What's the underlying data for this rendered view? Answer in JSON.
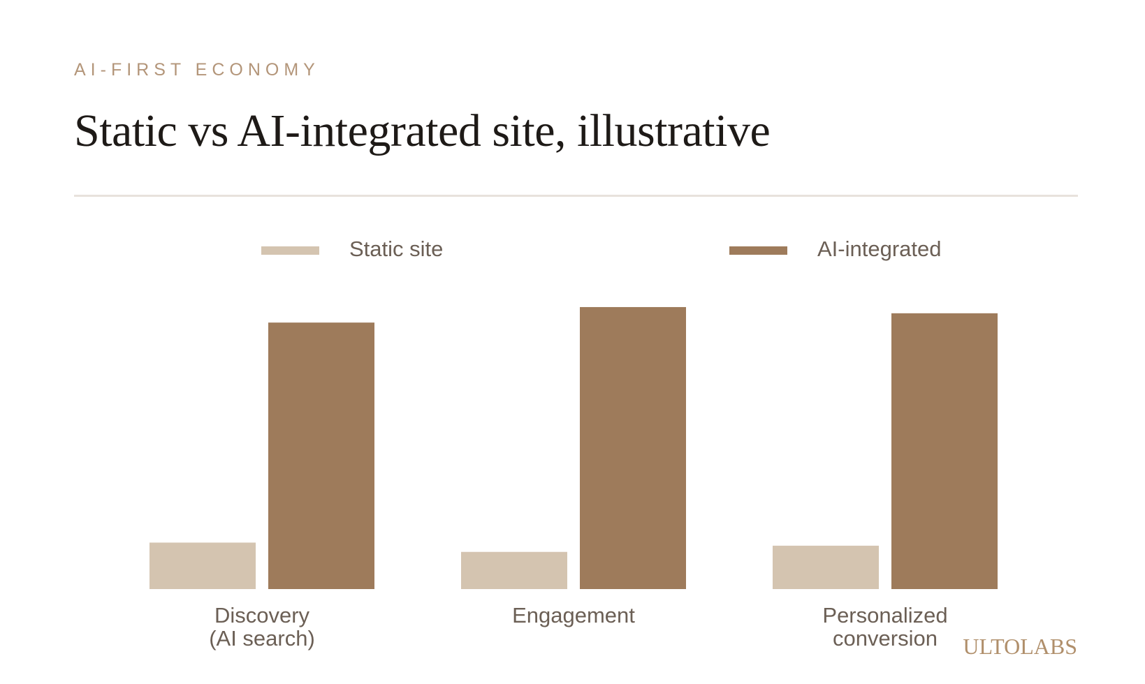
{
  "header": {
    "eyebrow": "AI-FIRST ECONOMY",
    "title": "Static vs AI-integrated site, illustrative"
  },
  "brand": {
    "logo_text": "ULTOLABS"
  },
  "colors": {
    "static": "#d4c4b0",
    "ai": "#9e7b5b",
    "text": "#6b5f55"
  },
  "chart_data": {
    "type": "bar",
    "title": "Static vs AI-integrated site, illustrative",
    "categories": [
      [
        "Discovery",
        "(AI search)"
      ],
      [
        "Engagement"
      ],
      [
        "Personalized",
        "conversion"
      ]
    ],
    "series": [
      {
        "name": "Static site",
        "color": "#d4c4b0",
        "values": [
          15,
          12,
          14
        ]
      },
      {
        "name": "AI-integrated",
        "color": "#9e7b5b",
        "values": [
          86,
          91,
          89
        ]
      }
    ],
    "ylim": [
      0,
      100
    ],
    "legend_position": "top",
    "grid": false,
    "xlabel": "",
    "ylabel": ""
  }
}
